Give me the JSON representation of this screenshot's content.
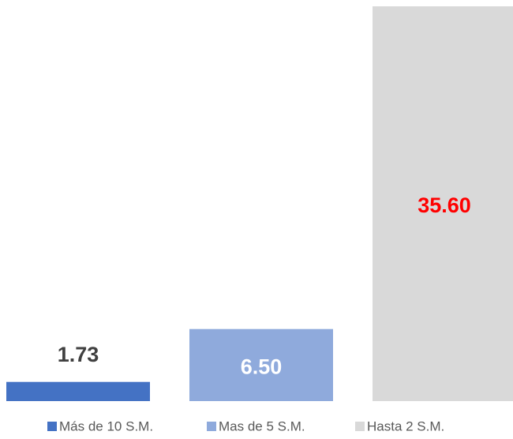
{
  "chart_data": {
    "type": "bar",
    "series": [
      {
        "name": "Más de 10 S.M.",
        "color": "#4472c4",
        "label_color": "#404040",
        "values": [
          1.73
        ],
        "value_labels": [
          "1.73"
        ]
      },
      {
        "name": "Mas de 5 S.M.",
        "color": "#8faadc",
        "label_color": "#ffffff",
        "values": [
          6.5
        ],
        "value_labels": [
          "6.50"
        ]
      },
      {
        "name": "Hasta 2 S.M.",
        "color": "#d9d9d9",
        "label_color": "#ff0000",
        "values": [
          35.6
        ],
        "value_labels": [
          "35.60"
        ]
      }
    ],
    "legend": "bottom"
  }
}
